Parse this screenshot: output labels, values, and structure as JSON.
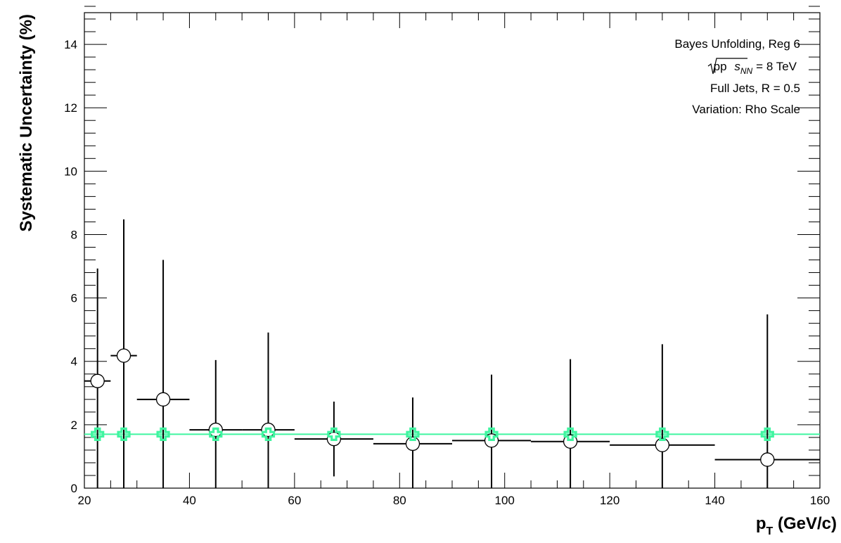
{
  "chart_data": {
    "type": "scatter",
    "title": "",
    "xlabel": "p",
    "xlabel_sub": "T",
    "xlabel_rest": " (GeV/c)",
    "ylabel": "Systematic Uncertainty (%)",
    "xlim": [
      20,
      160
    ],
    "ylim": [
      0,
      15
    ],
    "x_ticks": [
      20,
      40,
      60,
      80,
      100,
      120,
      140,
      160
    ],
    "y_ticks": [
      0,
      2,
      4,
      6,
      8,
      10,
      12,
      14
    ],
    "grid": false,
    "annotation_lines": [
      "Bayes Unfolding, Reg 6",
      "Full Jets, R = 0.5",
      "Variation: Rho Scale"
    ],
    "energy_label": {
      "prefix": "pp",
      "sqrt_symbol": "s",
      "sqrt_sub": "NN",
      "suffix": "= 8 TeV"
    },
    "series": [
      {
        "marker": "open-circle",
        "color": "#000000",
        "points": [
          {
            "x": 22.5,
            "y": 3.38,
            "xlo": 20,
            "xhi": 25,
            "yerr": 3.55
          },
          {
            "x": 27.5,
            "y": 4.18,
            "xlo": 25,
            "xhi": 30,
            "yerr": 4.3
          },
          {
            "x": 35,
            "y": 2.8,
            "xlo": 30,
            "xhi": 40,
            "yerr": 4.4
          },
          {
            "x": 45,
            "y": 1.84,
            "xlo": 40,
            "xhi": 50,
            "yerr": 2.2
          },
          {
            "x": 55,
            "y": 1.84,
            "xlo": 50,
            "xhi": 60,
            "yerr": 3.07
          },
          {
            "x": 67.5,
            "y": 1.55,
            "xlo": 60,
            "xhi": 75,
            "yerr": 1.18
          },
          {
            "x": 82.5,
            "y": 1.4,
            "xlo": 75,
            "xhi": 90,
            "yerr": 1.46
          },
          {
            "x": 97.5,
            "y": 1.5,
            "xlo": 90,
            "xhi": 105,
            "yerr": 2.08
          },
          {
            "x": 112.5,
            "y": 1.47,
            "xlo": 105,
            "xhi": 120,
            "yerr": 2.6
          },
          {
            "x": 130,
            "y": 1.36,
            "xlo": 120,
            "xhi": 140,
            "yerr": 3.18
          },
          {
            "x": 150,
            "y": 0.9,
            "xlo": 140,
            "xhi": 160,
            "yerr": 4.58
          }
        ]
      },
      {
        "marker": "open-cross",
        "color": "#3ff5a0",
        "fit_line": {
          "x1": 20,
          "x2": 160,
          "y": 1.7
        },
        "points": [
          {
            "x": 22.5,
            "y": 1.7
          },
          {
            "x": 27.5,
            "y": 1.7
          },
          {
            "x": 35,
            "y": 1.7
          },
          {
            "x": 45,
            "y": 1.7
          },
          {
            "x": 55,
            "y": 1.7
          },
          {
            "x": 67.5,
            "y": 1.7
          },
          {
            "x": 82.5,
            "y": 1.7
          },
          {
            "x": 97.5,
            "y": 1.7
          },
          {
            "x": 112.5,
            "y": 1.7
          },
          {
            "x": 130,
            "y": 1.7
          },
          {
            "x": 150,
            "y": 1.7
          }
        ]
      }
    ]
  }
}
